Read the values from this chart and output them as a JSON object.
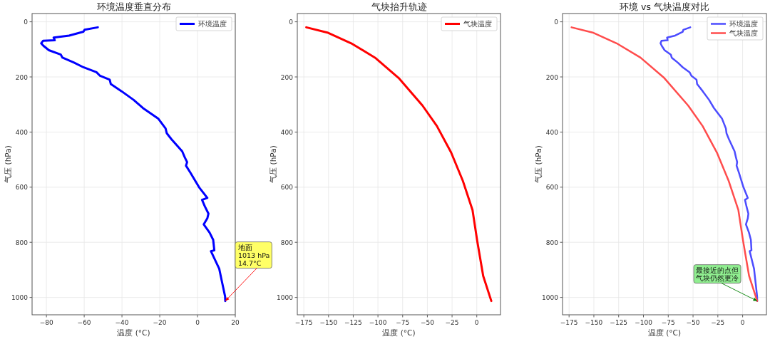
{
  "chart_data": [
    {
      "type": "line",
      "title": "环境温度垂直分布",
      "xlabel": "温度 (°C)",
      "ylabel": "气压 (hPa)",
      "xlim": [
        -87.6,
        20
      ],
      "ylim": [
        1063,
        -30
      ],
      "xticks": [
        -80,
        -60,
        -40,
        -20,
        0,
        20
      ],
      "yticks": [
        0,
        200,
        400,
        600,
        800,
        1000
      ],
      "grid": true,
      "legend": "top right",
      "series": [
        {
          "name": "环境温度",
          "color": "#0000ff",
          "x": [
            -52.8,
            -59.8,
            -60.4,
            -68,
            -76.2,
            -75.6,
            -81.8,
            -82.8,
            -81.6,
            -78.7,
            -72.4,
            -71.5,
            -65.4,
            -60.4,
            -53.5,
            -51.6,
            -46.5,
            -45.9,
            -40.2,
            -33.9,
            -28.9,
            -20.7,
            -16.9,
            -16.3,
            -13.8,
            -8.1,
            -6.8,
            -5.5,
            -6.1,
            -3.7,
            0.8,
            5.2,
            2.4,
            3.9,
            5.8,
            5.2,
            3.3,
            6.4,
            8.3,
            8.9,
            7.1,
            11.5,
            12.7,
            14.6,
            14.7
          ],
          "values": [
            20,
            29,
            36,
            50,
            57,
            67,
            69,
            78,
            87,
            103,
            119,
            130,
            148,
            165,
            183,
            196,
            210,
            226,
            252,
            283,
            313,
            352,
            387,
            404,
            426,
            470,
            491,
            509,
            522,
            548,
            600,
            639,
            646,
            670,
            696,
            713,
            735,
            765,
            791,
            829,
            832,
            896,
            935,
            996,
            1013
          ]
        }
      ],
      "annotations": [
        {
          "text": "地面\n1013 hPa\n14.7°C",
          "x": 14.7,
          "y": 1013
        }
      ]
    },
    {
      "type": "line",
      "title": "气块抬升轨迹",
      "xlabel": "温度 (°C)",
      "ylabel": "气压 (hPa)",
      "xlim": [
        -181.6,
        24
      ],
      "ylim": [
        1063,
        -30
      ],
      "xticks": [
        -175,
        -150,
        -125,
        -100,
        -75,
        -50,
        -25,
        0
      ],
      "yticks": [
        0,
        200,
        400,
        600,
        800,
        1000
      ],
      "grid": true,
      "legend": "top right",
      "series": [
        {
          "name": "气块温度",
          "color": "#ff0000",
          "x": [
            -172.5,
            -151.2,
            -127.1,
            -103,
            -79,
            -54.9,
            -40.4,
            -26,
            -14,
            -4.3,
            0.5,
            6.5,
            14.7
          ],
          "values": [
            20,
            39,
            78,
            130,
            204,
            304,
            378,
            474,
            578,
            683,
            796,
            922,
            1013
          ]
        }
      ]
    },
    {
      "type": "line",
      "title": "环境 vs 气块温度对比",
      "xlabel": "温度 (°C)",
      "ylabel": "气压 (hPa)",
      "xlim": [
        -181.6,
        24
      ],
      "ylim": [
        1063,
        -30
      ],
      "xticks": [
        -175,
        -150,
        -125,
        -100,
        -75,
        -50,
        -25,
        0
      ],
      "yticks": [
        0,
        200,
        400,
        600,
        800,
        1000
      ],
      "grid": true,
      "legend": "top right",
      "series": [
        {
          "name": "环境温度",
          "color": "#4c4cff",
          "x": [
            -52.8,
            -59.8,
            -60.4,
            -68,
            -76.2,
            -75.6,
            -81.8,
            -82.8,
            -81.6,
            -78.7,
            -72.4,
            -71.5,
            -65.4,
            -60.4,
            -53.5,
            -51.6,
            -46.5,
            -45.9,
            -40.2,
            -33.9,
            -28.9,
            -20.7,
            -16.9,
            -16.3,
            -13.8,
            -8.1,
            -6.8,
            -5.5,
            -6.1,
            -3.7,
            0.8,
            5.2,
            2.4,
            3.9,
            5.8,
            5.2,
            3.3,
            6.4,
            8.3,
            8.9,
            7.1,
            11.5,
            12.7,
            14.6,
            14.7
          ],
          "values": [
            20,
            29,
            36,
            50,
            57,
            67,
            69,
            78,
            87,
            103,
            119,
            130,
            148,
            165,
            183,
            196,
            210,
            226,
            252,
            283,
            313,
            352,
            387,
            404,
            426,
            470,
            491,
            509,
            522,
            548,
            600,
            639,
            646,
            670,
            696,
            713,
            735,
            765,
            791,
            829,
            832,
            896,
            935,
            996,
            1013
          ]
        },
        {
          "name": "气块温度",
          "color": "#ff4c4c",
          "x": [
            -172.5,
            -151.2,
            -127.1,
            -103,
            -79,
            -54.9,
            -40.4,
            -26,
            -14,
            -4.3,
            0.5,
            6.5,
            14.7
          ],
          "values": [
            20,
            39,
            78,
            130,
            204,
            304,
            378,
            474,
            578,
            683,
            796,
            922,
            1013
          ]
        }
      ],
      "annotations": [
        {
          "text": "最接近的点但气块仍然更冷",
          "x": 14.7,
          "y": 1013
        }
      ]
    }
  ]
}
